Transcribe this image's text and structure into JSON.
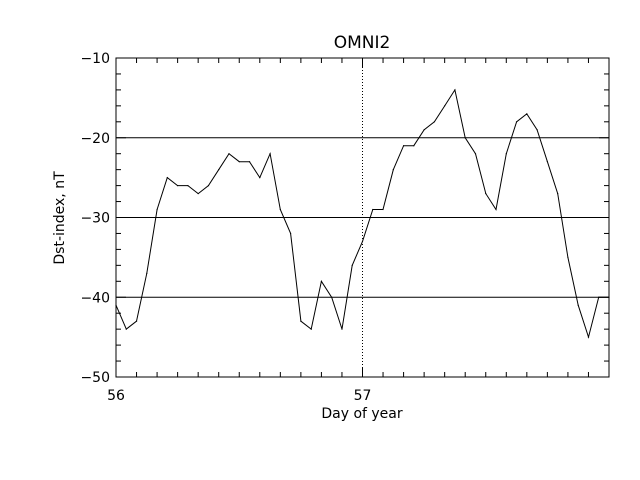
{
  "chart_data": {
    "type": "line",
    "title": "OMNI2",
    "xlabel": "Day of year",
    "ylabel": "Dst-index, nT",
    "xlim": [
      56,
      58
    ],
    "ylim": [
      -50,
      -10
    ],
    "x_ticks": [
      {
        "value": 56,
        "label": "56"
      },
      {
        "value": 57,
        "label": "57"
      }
    ],
    "y_ticks": [
      {
        "value": -10,
        "label": "−10"
      },
      {
        "value": -20,
        "label": "−20"
      },
      {
        "value": -30,
        "label": "−30"
      },
      {
        "value": -40,
        "label": "−40"
      },
      {
        "value": -50,
        "label": "−50"
      }
    ],
    "reference_lines": {
      "horizontal": [
        -20,
        -30,
        -40
      ],
      "vertical_dotted": [
        57
      ]
    },
    "series": [
      {
        "x": [
          56.0,
          56.0417,
          56.0833,
          56.125,
          56.1667,
          56.2083,
          56.25,
          56.2917,
          56.3333,
          56.375,
          56.4167,
          56.4583,
          56.5,
          56.5417,
          56.5833,
          56.625,
          56.6667,
          56.7083,
          56.75,
          56.7917,
          56.8333,
          56.875,
          56.9167,
          56.9583,
          57.0,
          57.0417,
          57.0833,
          57.125,
          57.1667,
          57.2083,
          57.25,
          57.2917,
          57.3333,
          57.375,
          57.4167,
          57.4583,
          57.5,
          57.5417,
          57.5833,
          57.625,
          57.6667,
          57.7083,
          57.75,
          57.7917,
          57.8333,
          57.875,
          57.9167,
          57.9583,
          58.0
        ],
        "values": [
          -41,
          -44,
          -43,
          -37,
          -29,
          -25,
          -26,
          -26,
          -27,
          -26,
          -24,
          -22,
          -23,
          -23,
          -25,
          -22,
          -29,
          -32,
          -43,
          -44,
          -38,
          -40,
          -44,
          -36,
          -33,
          -29,
          -29,
          -24,
          -21,
          -21,
          -19,
          -18,
          -16,
          -14,
          -20,
          -22,
          -27,
          -29,
          -22,
          -18,
          -17,
          -19,
          -23,
          -27,
          -35,
          -41,
          -45,
          -40,
          -40
        ]
      }
    ]
  }
}
